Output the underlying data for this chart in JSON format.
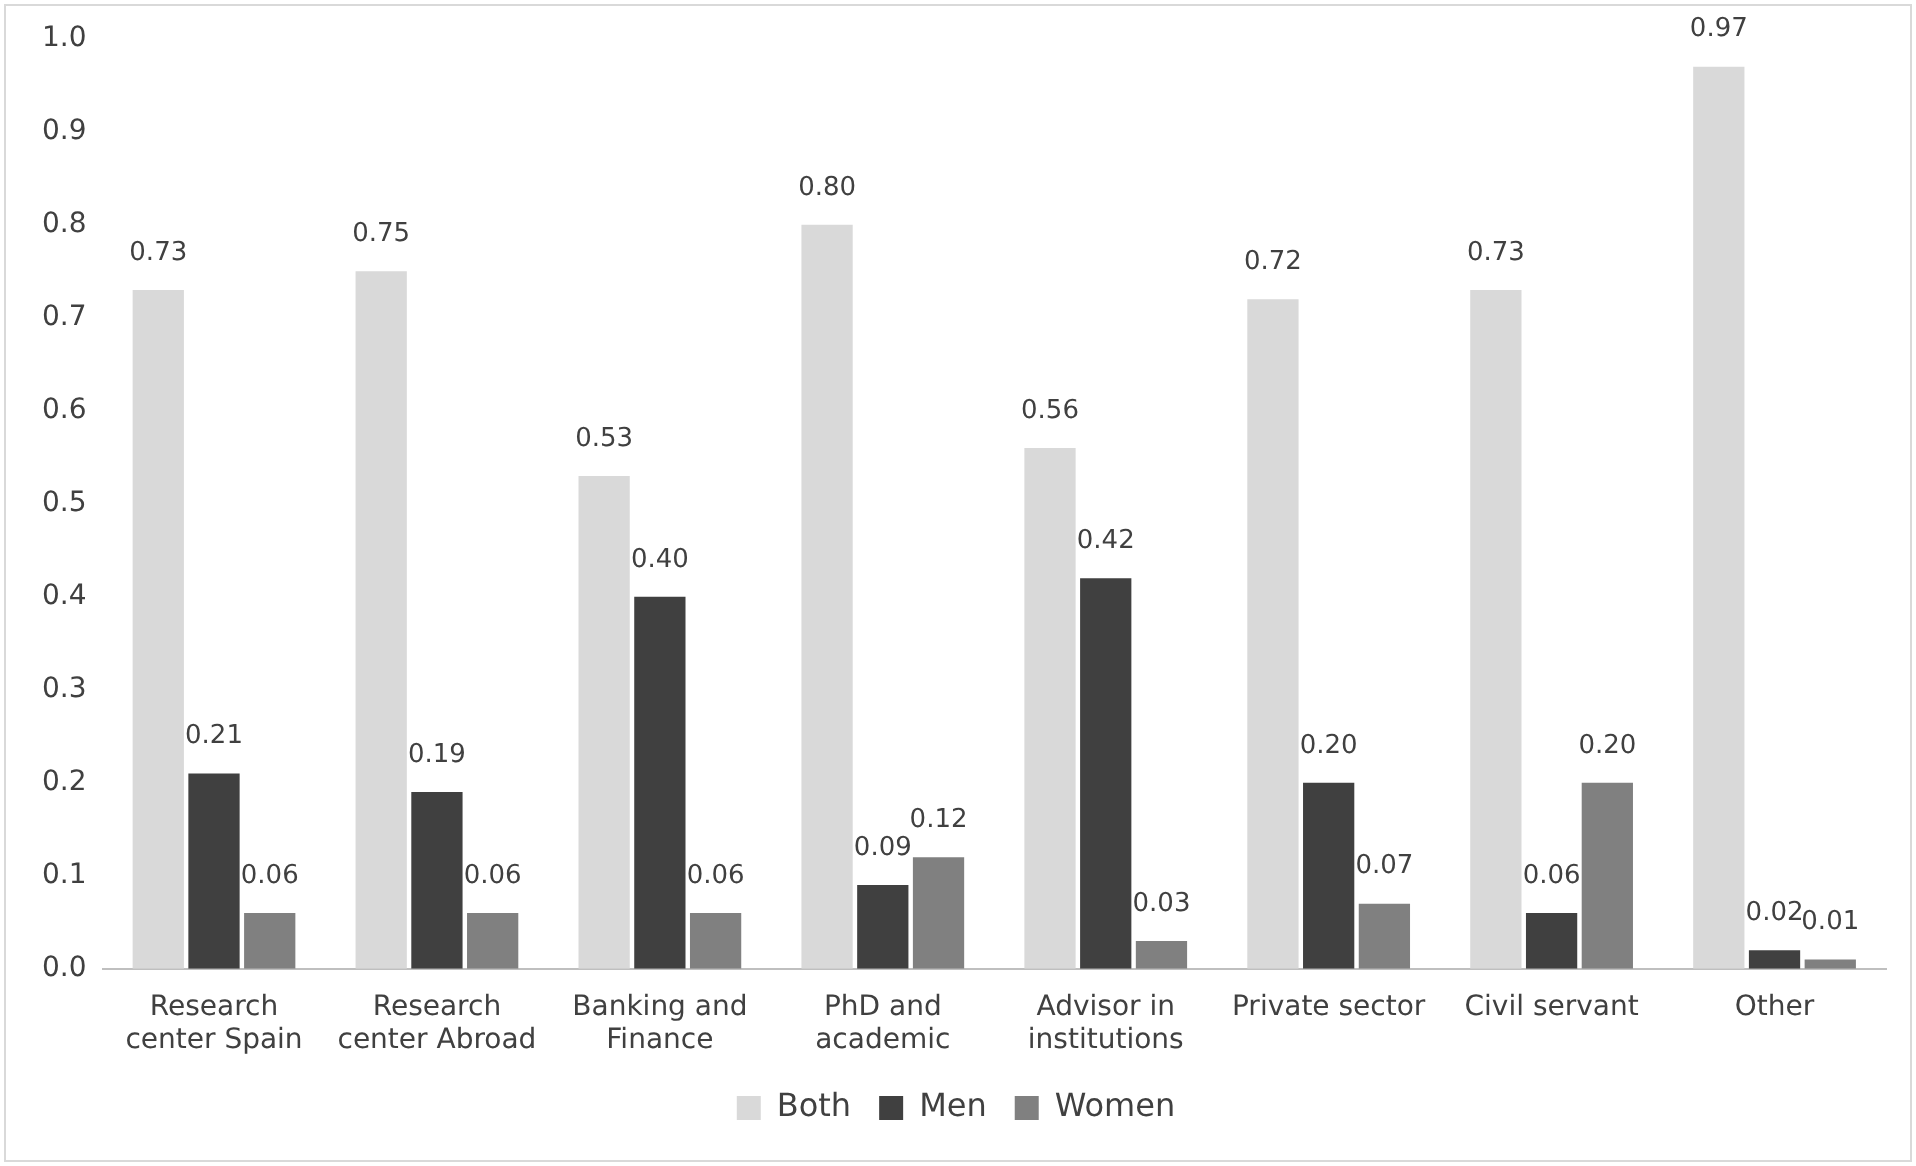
{
  "chart_data": {
    "type": "bar",
    "categories": [
      "Research center Spain",
      "Research center Abroad",
      "Banking and Finance",
      "PhD and academic",
      "Advisor in institutions",
      "Private sector",
      "Civil servant",
      "Other"
    ],
    "series": [
      {
        "name": "Both",
        "color": "#d9d9d9",
        "values": [
          0.73,
          0.75,
          0.53,
          0.8,
          0.56,
          0.72,
          0.73,
          0.97
        ],
        "value_labels": [
          "0.73",
          "0.75",
          "0.53",
          "0.80",
          "0.56",
          "0.72",
          "0.73",
          "0.97"
        ]
      },
      {
        "name": "Men",
        "color": "#404040",
        "values": [
          0.21,
          0.19,
          0.4,
          0.09,
          0.42,
          0.2,
          0.06,
          0.02
        ],
        "value_labels": [
          "0.21",
          "0.19",
          "0.40",
          "0.09",
          "0.42",
          "0.20",
          "0.06",
          "0.02"
        ]
      },
      {
        "name": "Women",
        "color": "#808080",
        "values": [
          0.06,
          0.06,
          0.06,
          0.12,
          0.03,
          0.07,
          0.2,
          0.01
        ],
        "value_labels": [
          "0.06",
          "0.06",
          "0.06",
          "0.12",
          "0.03",
          "0.07",
          "0.20",
          "0.01"
        ]
      }
    ],
    "ylim": [
      0,
      1
    ],
    "yticks": [
      {
        "value": 0,
        "label": "0.0"
      },
      {
        "value": 0.1,
        "label": "0.1"
      },
      {
        "value": 0.2,
        "label": "0.2"
      },
      {
        "value": 0.3,
        "label": "0.3"
      },
      {
        "value": 0.4,
        "label": "0.4"
      },
      {
        "value": 0.5,
        "label": "0.5"
      },
      {
        "value": 0.6,
        "label": "0.6"
      },
      {
        "value": 0.7,
        "label": "0.7"
      },
      {
        "value": 0.8,
        "label": "0.8"
      },
      {
        "value": 0.9,
        "label": "0.9"
      },
      {
        "value": 1,
        "label": "1.0"
      }
    ],
    "legend": "bottom"
  }
}
